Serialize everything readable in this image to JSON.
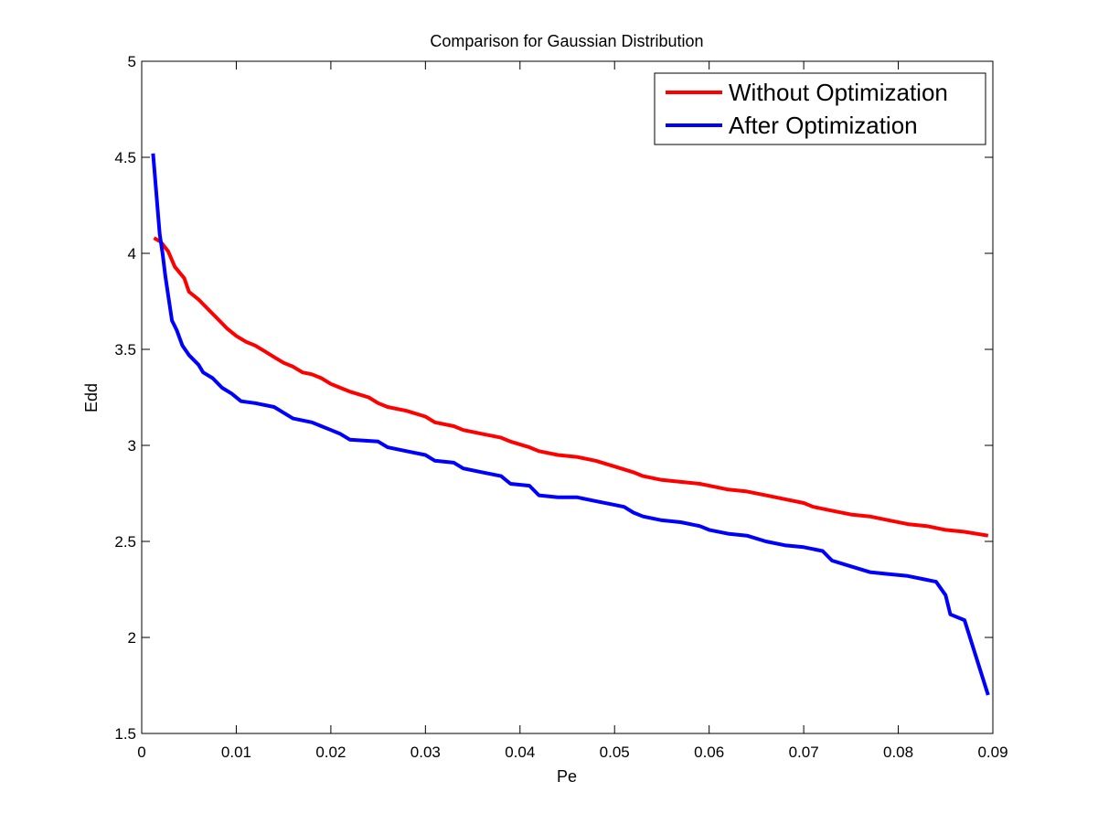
{
  "chart_data": {
    "type": "line",
    "title": "Comparison for Gaussian Distribution",
    "xlabel": "Pe",
    "ylabel": "Edd",
    "xlim": [
      0,
      0.09
    ],
    "ylim": [
      1.5,
      5
    ],
    "grid": false,
    "legend_position": "top-right",
    "x_ticks": [
      0,
      0.01,
      0.02,
      0.03,
      0.04,
      0.05,
      0.06,
      0.07,
      0.08,
      0.09
    ],
    "x_tick_labels": [
      "0",
      "0.01",
      "0.02",
      "0.03",
      "0.04",
      "0.05",
      "0.06",
      "0.07",
      "0.08",
      "0.09"
    ],
    "y_ticks": [
      1.5,
      2,
      2.5,
      3,
      3.5,
      4,
      4.5,
      5
    ],
    "y_tick_labels": [
      "1.5",
      "2",
      "2.5",
      "3",
      "3.5",
      "4",
      "4.5",
      "5"
    ],
    "series": [
      {
        "name": "Without Optimization",
        "color": "#ff0000",
        "points": [
          [
            0.0013,
            4.08
          ],
          [
            0.002,
            4.06
          ],
          [
            0.0028,
            4.01
          ],
          [
            0.0035,
            3.93
          ],
          [
            0.0045,
            3.87
          ],
          [
            0.005,
            3.8
          ],
          [
            0.006,
            3.76
          ],
          [
            0.007,
            3.71
          ],
          [
            0.008,
            3.66
          ],
          [
            0.009,
            3.61
          ],
          [
            0.01,
            3.57
          ],
          [
            0.011,
            3.54
          ],
          [
            0.012,
            3.52
          ],
          [
            0.013,
            3.49
          ],
          [
            0.014,
            3.46
          ],
          [
            0.015,
            3.43
          ],
          [
            0.016,
            3.41
          ],
          [
            0.017,
            3.38
          ],
          [
            0.018,
            3.37
          ],
          [
            0.019,
            3.35
          ],
          [
            0.02,
            3.32
          ],
          [
            0.021,
            3.3
          ],
          [
            0.022,
            3.28
          ],
          [
            0.024,
            3.25
          ],
          [
            0.025,
            3.22
          ],
          [
            0.026,
            3.2
          ],
          [
            0.028,
            3.18
          ],
          [
            0.03,
            3.15
          ],
          [
            0.031,
            3.12
          ],
          [
            0.033,
            3.1
          ],
          [
            0.034,
            3.08
          ],
          [
            0.036,
            3.06
          ],
          [
            0.038,
            3.04
          ],
          [
            0.039,
            3.02
          ],
          [
            0.041,
            2.99
          ],
          [
            0.042,
            2.97
          ],
          [
            0.044,
            2.95
          ],
          [
            0.046,
            2.94
          ],
          [
            0.048,
            2.92
          ],
          [
            0.05,
            2.89
          ],
          [
            0.052,
            2.86
          ],
          [
            0.053,
            2.84
          ],
          [
            0.055,
            2.82
          ],
          [
            0.057,
            2.81
          ],
          [
            0.059,
            2.8
          ],
          [
            0.06,
            2.79
          ],
          [
            0.062,
            2.77
          ],
          [
            0.064,
            2.76
          ],
          [
            0.066,
            2.74
          ],
          [
            0.068,
            2.72
          ],
          [
            0.07,
            2.7
          ],
          [
            0.071,
            2.68
          ],
          [
            0.073,
            2.66
          ],
          [
            0.075,
            2.64
          ],
          [
            0.077,
            2.63
          ],
          [
            0.079,
            2.61
          ],
          [
            0.081,
            2.59
          ],
          [
            0.083,
            2.58
          ],
          [
            0.085,
            2.56
          ],
          [
            0.087,
            2.55
          ],
          [
            0.0895,
            2.53
          ]
        ]
      },
      {
        "name": "After Optimization",
        "color": "#0000ff",
        "points": [
          [
            0.0012,
            4.52
          ],
          [
            0.0014,
            4.4
          ],
          [
            0.0017,
            4.22
          ],
          [
            0.0019,
            4.1
          ],
          [
            0.0022,
            4.0
          ],
          [
            0.0025,
            3.88
          ],
          [
            0.0028,
            3.78
          ],
          [
            0.0032,
            3.65
          ],
          [
            0.0037,
            3.6
          ],
          [
            0.0043,
            3.52
          ],
          [
            0.005,
            3.47
          ],
          [
            0.006,
            3.42
          ],
          [
            0.0065,
            3.38
          ],
          [
            0.0075,
            3.35
          ],
          [
            0.0085,
            3.3
          ],
          [
            0.0095,
            3.27
          ],
          [
            0.0105,
            3.23
          ],
          [
            0.012,
            3.22
          ],
          [
            0.014,
            3.2
          ],
          [
            0.015,
            3.17
          ],
          [
            0.016,
            3.14
          ],
          [
            0.018,
            3.12
          ],
          [
            0.019,
            3.1
          ],
          [
            0.02,
            3.08
          ],
          [
            0.021,
            3.06
          ],
          [
            0.022,
            3.03
          ],
          [
            0.025,
            3.02
          ],
          [
            0.026,
            2.99
          ],
          [
            0.028,
            2.97
          ],
          [
            0.03,
            2.95
          ],
          [
            0.031,
            2.92
          ],
          [
            0.033,
            2.91
          ],
          [
            0.034,
            2.88
          ],
          [
            0.036,
            2.86
          ],
          [
            0.038,
            2.84
          ],
          [
            0.039,
            2.8
          ],
          [
            0.041,
            2.79
          ],
          [
            0.042,
            2.74
          ],
          [
            0.044,
            2.73
          ],
          [
            0.046,
            2.73
          ],
          [
            0.048,
            2.71
          ],
          [
            0.05,
            2.69
          ],
          [
            0.051,
            2.68
          ],
          [
            0.052,
            2.65
          ],
          [
            0.053,
            2.63
          ],
          [
            0.055,
            2.61
          ],
          [
            0.057,
            2.6
          ],
          [
            0.059,
            2.58
          ],
          [
            0.06,
            2.56
          ],
          [
            0.062,
            2.54
          ],
          [
            0.064,
            2.53
          ],
          [
            0.066,
            2.5
          ],
          [
            0.068,
            2.48
          ],
          [
            0.07,
            2.47
          ],
          [
            0.072,
            2.45
          ],
          [
            0.073,
            2.4
          ],
          [
            0.075,
            2.37
          ],
          [
            0.077,
            2.34
          ],
          [
            0.079,
            2.33
          ],
          [
            0.081,
            2.32
          ],
          [
            0.083,
            2.3
          ],
          [
            0.084,
            2.29
          ],
          [
            0.085,
            2.22
          ],
          [
            0.0855,
            2.12
          ],
          [
            0.087,
            2.09
          ],
          [
            0.0895,
            1.7
          ]
        ]
      }
    ]
  }
}
